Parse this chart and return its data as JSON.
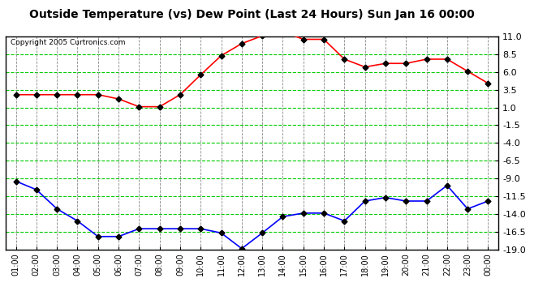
{
  "title": "Outside Temperature (vs) Dew Point (Last 24 Hours) Sun Jan 16 00:00",
  "copyright": "Copyright 2005 Curtronics.com",
  "x_labels": [
    "01:00",
    "02:00",
    "03:00",
    "04:00",
    "05:00",
    "06:00",
    "07:00",
    "08:00",
    "09:00",
    "10:00",
    "11:00",
    "12:00",
    "13:00",
    "14:00",
    "15:00",
    "16:00",
    "17:00",
    "18:00",
    "19:00",
    "20:00",
    "21:00",
    "22:00",
    "23:00",
    "00:00"
  ],
  "temp_data": [
    2.8,
    2.8,
    2.8,
    2.8,
    2.8,
    2.2,
    1.1,
    1.1,
    2.8,
    5.6,
    8.3,
    10.0,
    11.1,
    11.7,
    10.6,
    10.6,
    7.8,
    6.7,
    7.2,
    7.2,
    7.8,
    7.8,
    6.1,
    4.4
  ],
  "dew_data": [
    -9.4,
    -10.6,
    -13.3,
    -15.0,
    -17.2,
    -17.2,
    -16.1,
    -16.1,
    -16.1,
    -16.1,
    -16.7,
    -18.9,
    -16.7,
    -14.4,
    -13.9,
    -13.9,
    -15.0,
    -12.2,
    -11.7,
    -12.2,
    -12.2,
    -10.0,
    -13.3,
    -12.2
  ],
  "temp_color": "#ff0000",
  "dew_color": "#0000ff",
  "marker_color": "#000000",
  "bg_color": "#ffffff",
  "grid_h_color": "#00cc00",
  "grid_v_color": "#888888",
  "ylim_min": -19.0,
  "ylim_max": 11.0,
  "yticks": [
    11.0,
    8.5,
    6.0,
    3.5,
    1.0,
    -1.5,
    -4.0,
    -6.5,
    -9.0,
    -11.5,
    -14.0,
    -16.5,
    -19.0
  ],
  "title_fontsize": 10,
  "tick_fontsize": 8,
  "xtick_fontsize": 7
}
